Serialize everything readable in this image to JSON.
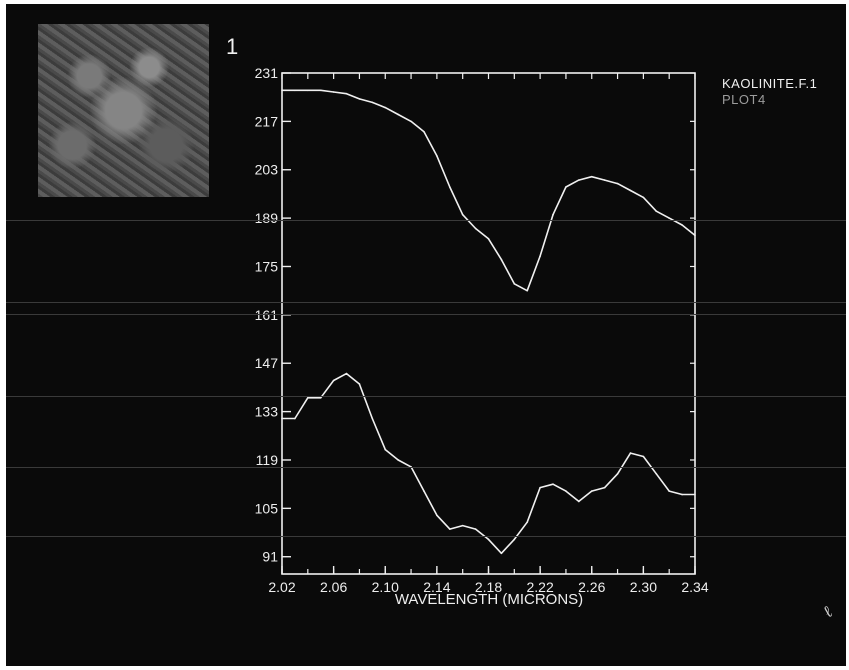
{
  "thumbnail": {
    "label": "1"
  },
  "legend": {
    "line1": "KAOLINITE.F.1",
    "line2": "PLOT4"
  },
  "colors": {
    "background": "#0a0a0a",
    "trace": "#f0f0f0",
    "legend_secondary": "#9c9c9c"
  },
  "chart_data": {
    "type": "line",
    "title": "",
    "xlabel": "WAVELENGTH (MICRONS)",
    "ylabel": "",
    "xlim": [
      2.02,
      2.34
    ],
    "ylim": [
      86,
      231
    ],
    "x_ticks": [
      "2.02",
      "2.06",
      "2.10",
      "2.14",
      "2.18",
      "2.22",
      "2.26",
      "2.30",
      "2.34"
    ],
    "y_ticks": [
      "231",
      "217",
      "203",
      "189",
      "175",
      "161",
      "147",
      "133",
      "119",
      "105",
      "91"
    ],
    "grid": false,
    "series": [
      {
        "x": [
          2.02,
          2.03,
          2.04,
          2.05,
          2.06,
          2.07,
          2.08,
          2.09,
          2.1,
          2.11,
          2.12,
          2.13,
          2.14,
          2.15,
          2.16,
          2.17,
          2.18,
          2.19,
          2.2,
          2.21,
          2.22,
          2.23,
          2.24,
          2.25,
          2.26,
          2.27,
          2.28,
          2.29,
          2.3,
          2.31,
          2.32,
          2.33,
          2.34
        ],
        "values": [
          226,
          226,
          226,
          226,
          225.5,
          225,
          223.5,
          222.5,
          221,
          219,
          217,
          214,
          207,
          198,
          190,
          186,
          183,
          177,
          170,
          168,
          178,
          190,
          198,
          200,
          201,
          200,
          199,
          197,
          195,
          191,
          189,
          187,
          184
        ]
      },
      {
        "x": [
          2.02,
          2.03,
          2.04,
          2.05,
          2.06,
          2.07,
          2.08,
          2.09,
          2.1,
          2.11,
          2.12,
          2.13,
          2.14,
          2.15,
          2.16,
          2.17,
          2.18,
          2.19,
          2.2,
          2.21,
          2.22,
          2.23,
          2.24,
          2.25,
          2.26,
          2.27,
          2.28,
          2.29,
          2.3,
          2.31,
          2.32,
          2.33,
          2.34
        ],
        "values": [
          131,
          131,
          137,
          137,
          142,
          144,
          141,
          131,
          122,
          119,
          117,
          110,
          103,
          99,
          100,
          99,
          96,
          92,
          96,
          101,
          111,
          112,
          110,
          107,
          110,
          111,
          115,
          121,
          120,
          115,
          110,
          109,
          109
        ]
      }
    ]
  }
}
